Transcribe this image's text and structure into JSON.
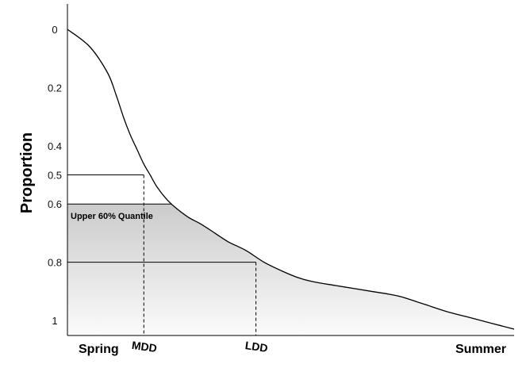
{
  "chart_data": {
    "type": "area",
    "ylabel": "Proportion",
    "y_axis": {
      "inverted": true,
      "range": [
        0,
        1.05
      ],
      "ticks": [
        "0",
        "0.2",
        "0.4",
        "0.5",
        "0.6",
        "0.8",
        "1"
      ],
      "tick_values": [
        0,
        0.2,
        0.4,
        0.5,
        0.6,
        0.8,
        1.0
      ]
    },
    "x_axis": {
      "start_label": "Spring",
      "end_label": "Summer"
    },
    "grid": false,
    "curve": {
      "x": [
        0,
        0.05,
        0.09,
        0.11,
        0.125,
        0.14,
        0.155,
        0.17,
        0.185,
        0.2,
        0.22,
        0.24,
        0.27,
        0.3,
        0.33,
        0.36,
        0.4,
        0.44,
        0.48,
        0.52,
        0.56,
        0.6,
        0.64,
        0.68,
        0.72,
        0.75,
        0.8,
        0.85,
        0.9,
        0.95,
        1.0
      ],
      "y": [
        0,
        0.06,
        0.15,
        0.23,
        0.3,
        0.36,
        0.41,
        0.46,
        0.5,
        0.54,
        0.58,
        0.61,
        0.645,
        0.67,
        0.7,
        0.73,
        0.76,
        0.8,
        0.83,
        0.855,
        0.87,
        0.88,
        0.89,
        0.9,
        0.91,
        0.92,
        0.945,
        0.97,
        0.99,
        1.01,
        1.03
      ]
    },
    "shading": {
      "from_y": 0.6,
      "label": "Upper 60% Quantile"
    },
    "markers": [
      {
        "label": "MDD",
        "x": 0.171,
        "y": 0.5
      },
      {
        "label": "LDD",
        "x": 0.422,
        "y": 0.8
      }
    ]
  }
}
